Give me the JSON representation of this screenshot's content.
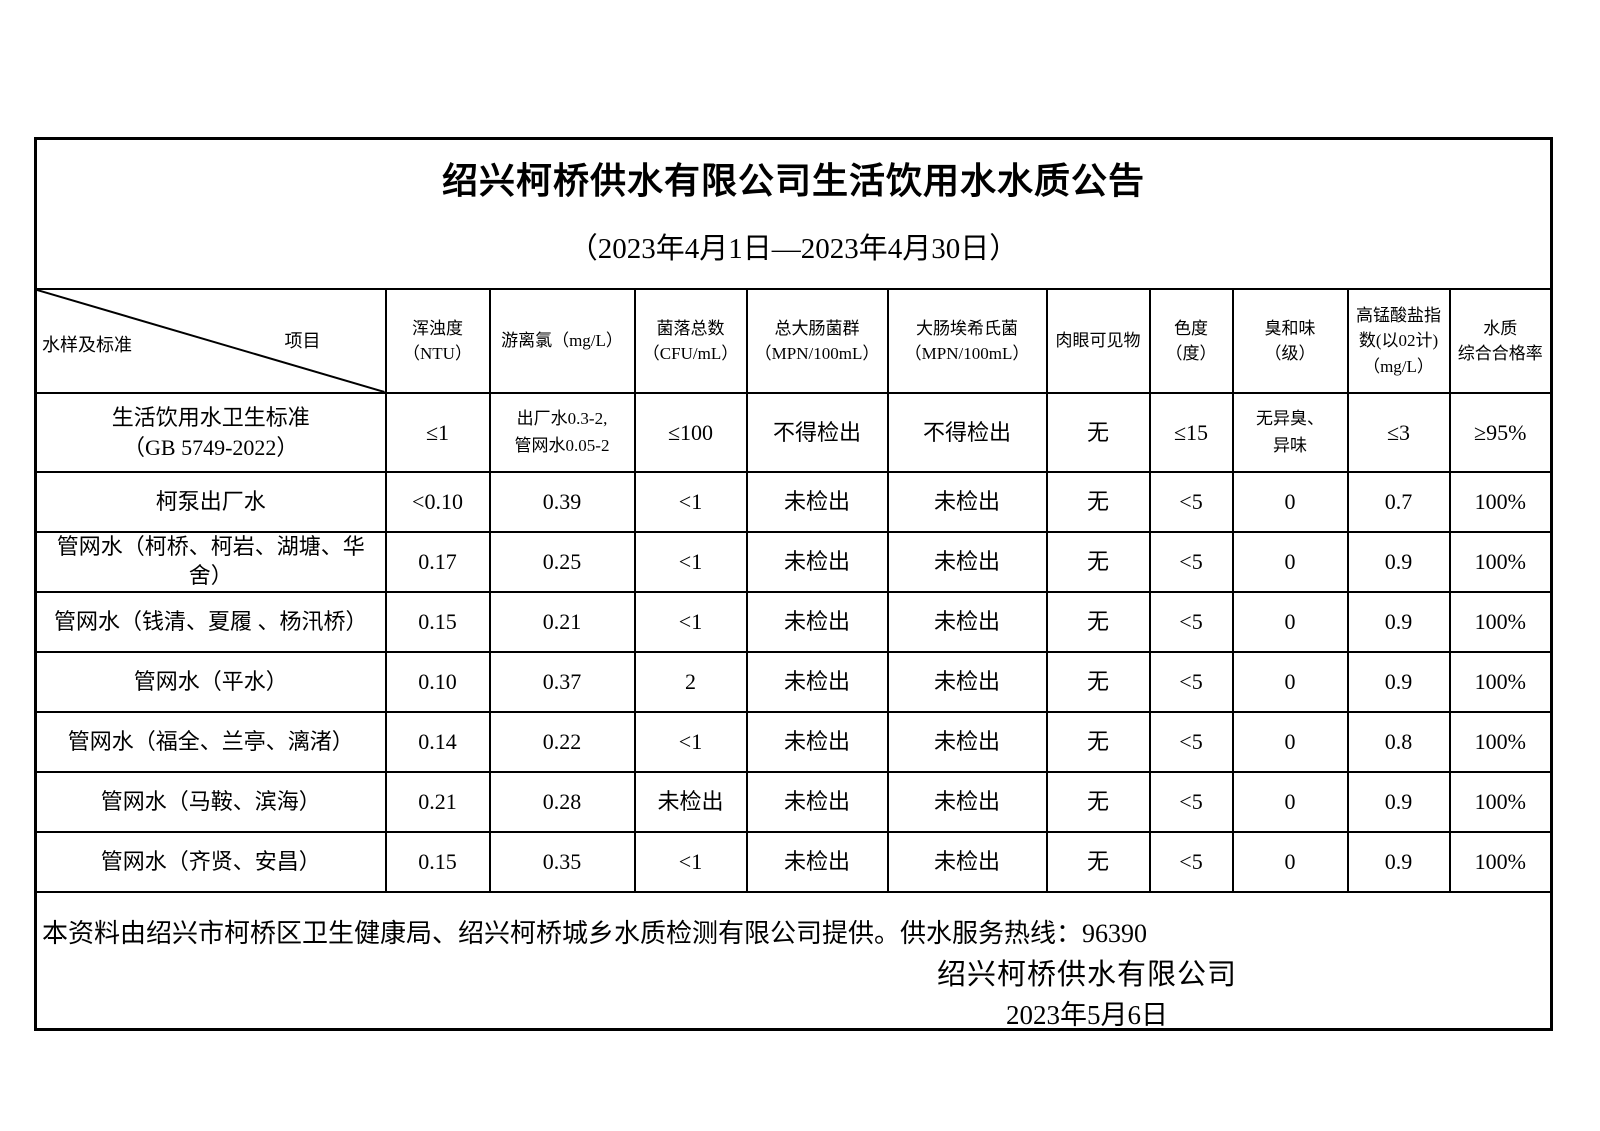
{
  "title": "绍兴柯桥供水有限公司生活饮用水水质公告",
  "date_range": "（2023年4月1日—2023年4月30日）",
  "table": {
    "corner_bottom_left": "水样及标准",
    "corner_top_right": "项目",
    "columns": [
      "浑浊度\n（NTU）",
      "游离氯（mg/L）",
      "菌落总数\n（CFU/mL）",
      "总大肠菌群\n（MPN/100mL）",
      "大肠埃希氏菌\n（MPN/100mL）",
      "肉眼可见物",
      "色度\n（度）",
      "臭和味\n（级）",
      "高锰酸盐指\n数(以02计)\n（mg/L）",
      "水质\n综合合格率"
    ],
    "rows": [
      {
        "label": "生活饮用水卫生标准\n（GB 5749-2022）",
        "standard": true,
        "values": [
          "≤1",
          "出厂水0.3-2,\n管网水0.05-2",
          "≤100",
          "不得检出",
          "不得检出",
          "无",
          "≤15",
          "无异臭、\n异味",
          "≤3",
          "≥95%"
        ]
      },
      {
        "label": "柯泵出厂水",
        "values": [
          "<0.10",
          "0.39",
          "<1",
          "未检出",
          "未检出",
          "无",
          "<5",
          "0",
          "0.7",
          "100%"
        ]
      },
      {
        "label": "管网水（柯桥、柯岩、湖塘、华\n舍）",
        "values": [
          "0.17",
          "0.25",
          "<1",
          "未检出",
          "未检出",
          "无",
          "<5",
          "0",
          "0.9",
          "100%"
        ]
      },
      {
        "label": "管网水（钱清、夏履 、杨汛桥）",
        "values": [
          "0.15",
          "0.21",
          "<1",
          "未检出",
          "未检出",
          "无",
          "<5",
          "0",
          "0.9",
          "100%"
        ]
      },
      {
        "label": "管网水（平水）",
        "values": [
          "0.10",
          "0.37",
          "2",
          "未检出",
          "未检出",
          "无",
          "<5",
          "0",
          "0.9",
          "100%"
        ]
      },
      {
        "label": "管网水（福全、兰亭、漓渚）",
        "values": [
          "0.14",
          "0.22",
          "<1",
          "未检出",
          "未检出",
          "无",
          "<5",
          "0",
          "0.8",
          "100%"
        ]
      },
      {
        "label": "管网水（马鞍、滨海）",
        "values": [
          "0.21",
          "0.28",
          "未检出",
          "未检出",
          "未检出",
          "无",
          "<5",
          "0",
          "0.9",
          "100%"
        ]
      },
      {
        "label": "管网水（齐贤、安昌）",
        "values": [
          "0.15",
          "0.35",
          "<1",
          "未检出",
          "未检出",
          "无",
          "<5",
          "0",
          "0.9",
          "100%"
        ]
      }
    ]
  },
  "footer": {
    "note": "本资料由绍兴市柯桥区卫生健康局、绍兴柯桥城乡水质检测有限公司提供。供水服务热线：96390",
    "company": "绍兴柯桥供水有限公司",
    "date": "2023年5月6日"
  }
}
